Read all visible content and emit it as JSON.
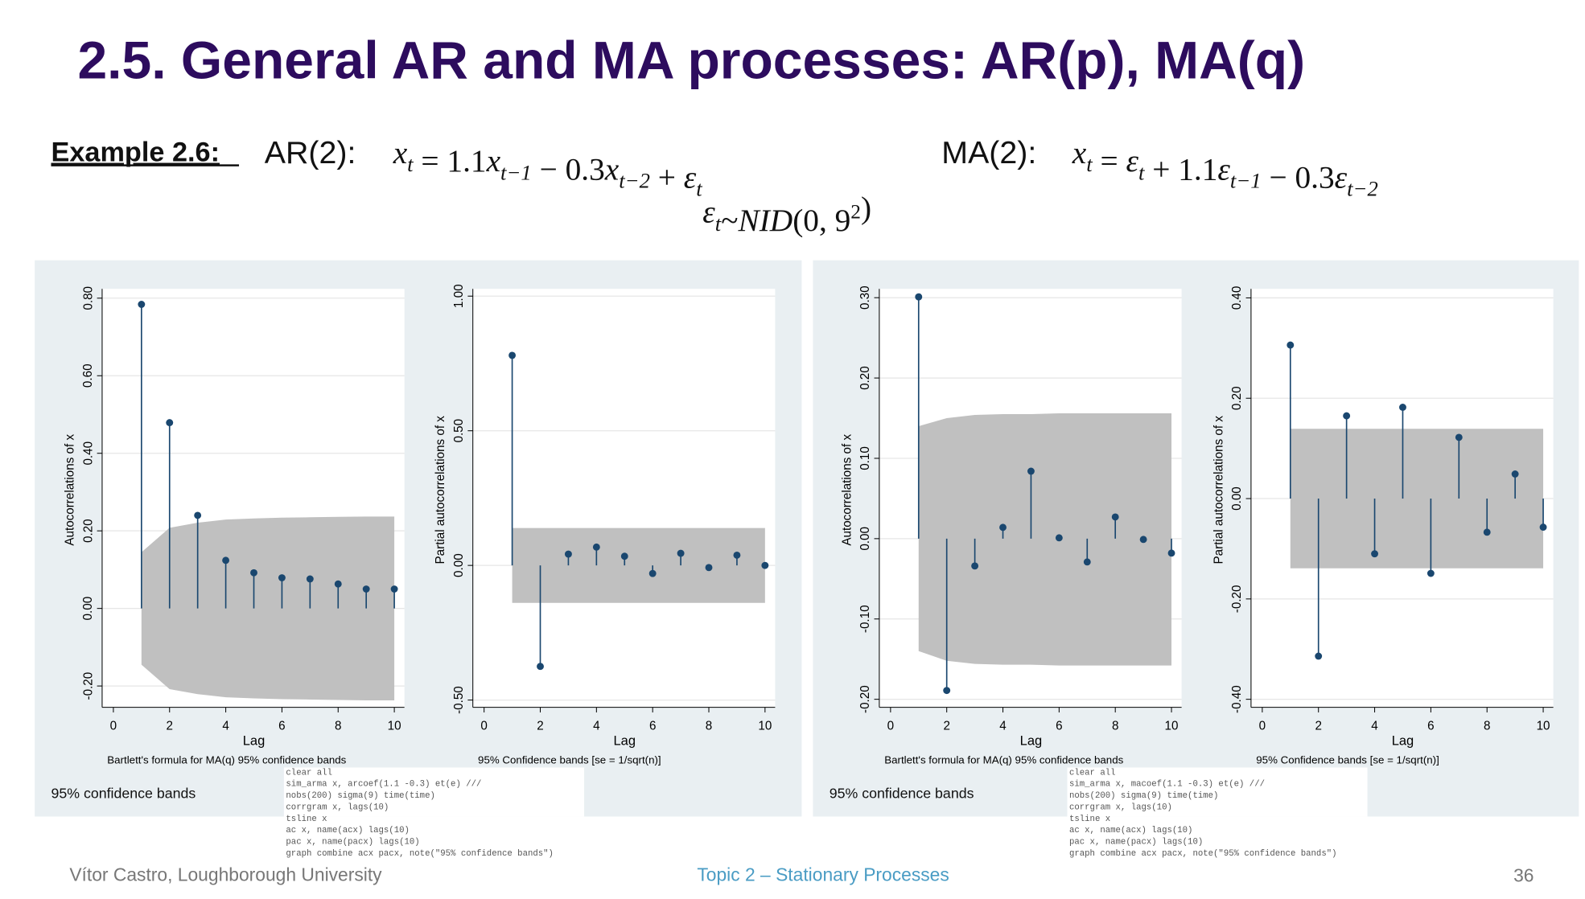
{
  "slide": {
    "title": "2.5. General AR and MA processes: AR(p), MA(q)",
    "example_label": "Example 2.6:",
    "models": [
      {
        "label": "AR(2):",
        "formula": [
          {
            "text": "x",
            "sub": "t"
          },
          {
            "text": " = 1.1"
          },
          {
            "text": "x",
            "sub": "t−1"
          },
          {
            "text": " − 0.3"
          },
          {
            "text": "x",
            "sub": "t−2"
          },
          {
            "text": " + "
          },
          {
            "text": "ε",
            "sub": "t"
          }
        ]
      },
      {
        "label": "MA(2):",
        "formula": [
          {
            "text": "x",
            "sub": "t"
          },
          {
            "text": " = "
          },
          {
            "text": "ε",
            "sub": "t"
          },
          {
            "text": " + 1.1"
          },
          {
            "text": "ε",
            "sub": "t−1"
          },
          {
            "text": " − 0.3"
          },
          {
            "text": "ε",
            "sub": "t−2"
          }
        ]
      }
    ],
    "noise": [
      {
        "text": "ε",
        "sub": "t"
      },
      {
        "text": "~"
      },
      {
        "text": "NID"
      },
      {
        "text": "(0, 9",
        "sup": "2"
      },
      {
        "text": ")"
      }
    ],
    "footer": {
      "author": "Vítor Castro, Loughborough University",
      "topic": "Topic 2 – Stationary Processes",
      "page": 36
    }
  },
  "panels": [
    {
      "note": "95% confidence bands",
      "code": [
        "clear all",
        "sim_arma x, arcoef(1.1 -0.3) et(e) ///",
        "nobs(200) sigma(9) time(time)",
        "corrgram x, lags(10)",
        "tsline x",
        "ac x, name(acx) lags(10)",
        "pac x, name(pacx) lags(10)",
        "graph combine acx pacx, note(\"95% confidence bands\")"
      ]
    },
    {
      "note": "95% confidence bands",
      "code": [
        "clear all",
        "sim_arma x, macoef(1.1 -0.3) et(e) ///",
        "nobs(200) sigma(9) time(time)",
        "corrgram x, lags(10)",
        "tsline x",
        "ac x, name(acx) lags(10)",
        "pac x, name(pacx) lags(10)",
        "graph combine acx pacx, note(\"95% confidence bands\")"
      ]
    }
  ],
  "chart_data": [
    {
      "type": "spike",
      "ylabel": "Autocorrelations of x",
      "xlabel": "Lag",
      "note": "Bartlett's formula for MA(q) 95% confidence bands",
      "x": [
        1,
        2,
        3,
        4,
        5,
        6,
        7,
        8,
        9,
        10
      ],
      "values": [
        0.784,
        0.479,
        0.24,
        0.124,
        0.092,
        0.079,
        0.076,
        0.063,
        0.05,
        0.05
      ],
      "band_upper": [
        0.145,
        0.208,
        0.221,
        0.229,
        0.232,
        0.234,
        0.235,
        0.236,
        0.237,
        0.237
      ],
      "band_lower": [
        -0.145,
        -0.208,
        -0.221,
        -0.229,
        -0.232,
        -0.234,
        -0.235,
        -0.236,
        -0.237,
        -0.237
      ],
      "color": "#1a476f",
      "band_color": "#c0c0c0",
      "grid": true,
      "xlim": [
        -0.4,
        10.36
      ],
      "xticks": [
        0,
        2,
        4,
        6,
        8,
        10
      ],
      "ylim": [
        -0.255,
        0.824
      ],
      "yticks": [
        {
          "value": -0.2,
          "label": "-0.20"
        },
        {
          "value": 0,
          "label": "0.00"
        },
        {
          "value": 0.2,
          "label": "0.20"
        },
        {
          "value": 0.4,
          "label": "0.40"
        },
        {
          "value": 0.6,
          "label": "0.60"
        },
        {
          "value": 0.8,
          "label": "0.80"
        }
      ]
    },
    {
      "type": "spike",
      "ylabel": "Partial autocorrelations of x",
      "xlabel": "Lag",
      "note": "95% Confidence bands [se = 1/sqrt(n)]",
      "x": [
        1,
        2,
        3,
        4,
        5,
        6,
        7,
        8,
        9,
        10
      ],
      "values": [
        0.78,
        -0.375,
        0.042,
        0.068,
        0.034,
        -0.03,
        0.045,
        -0.008,
        0.038,
        0.0
      ],
      "band_upper": [
        0.139,
        0.139,
        0.139,
        0.139,
        0.139,
        0.139,
        0.139,
        0.139,
        0.139,
        0.139
      ],
      "band_lower": [
        -0.139,
        -0.139,
        -0.139,
        -0.139,
        -0.139,
        -0.139,
        -0.139,
        -0.139,
        -0.139,
        -0.139
      ],
      "color": "#1a476f",
      "band_color": "#c0c0c0",
      "grid": true,
      "xlim": [
        -0.4,
        10.36
      ],
      "xticks": [
        0,
        2,
        4,
        6,
        8,
        10
      ],
      "ylim": [
        -0.527,
        1.027
      ],
      "yticks": [
        {
          "value": -0.5,
          "label": "-0.50"
        },
        {
          "value": 0,
          "label": "0.00"
        },
        {
          "value": 0.5,
          "label": "0.50"
        },
        {
          "value": 1,
          "label": "1.00"
        }
      ]
    },
    {
      "type": "spike",
      "ylabel": "Autocorrelations of x",
      "xlabel": "Lag",
      "note": "Bartlett's formula for MA(q) 95% confidence bands",
      "x": [
        1,
        2,
        3,
        4,
        5,
        6,
        7,
        8,
        9,
        10
      ],
      "values": [
        0.301,
        -0.189,
        -0.034,
        0.014,
        0.084,
        0.001,
        -0.029,
        0.027,
        -0.001,
        -0.018
      ],
      "band_upper": [
        0.14,
        0.15,
        0.154,
        0.155,
        0.155,
        0.156,
        0.156,
        0.156,
        0.156,
        0.156
      ],
      "band_lower": [
        -0.14,
        -0.152,
        -0.156,
        -0.157,
        -0.157,
        -0.158,
        -0.158,
        -0.158,
        -0.158,
        -0.158
      ],
      "color": "#1a476f",
      "band_color": "#c0c0c0",
      "grid": true,
      "xlim": [
        -0.4,
        10.36
      ],
      "xticks": [
        0,
        2,
        4,
        6,
        8,
        10
      ],
      "ylim": [
        -0.21,
        0.311
      ],
      "yticks": [
        {
          "value": -0.2,
          "label": "-0.20"
        },
        {
          "value": -0.1,
          "label": "-0.10"
        },
        {
          "value": 0,
          "label": "0.00"
        },
        {
          "value": 0.1,
          "label": "0.10"
        },
        {
          "value": 0.2,
          "label": "0.20"
        },
        {
          "value": 0.3,
          "label": "0.30"
        }
      ]
    },
    {
      "type": "spike",
      "ylabel": "Partial autocorrelations of x",
      "xlabel": "Lag",
      "note": "95% Confidence bands [se = 1/sqrt(n)]",
      "x": [
        1,
        2,
        3,
        4,
        5,
        6,
        7,
        8,
        9,
        10
      ],
      "values": [
        0.306,
        -0.314,
        0.165,
        -0.11,
        0.182,
        -0.149,
        0.122,
        -0.067,
        0.049,
        -0.057
      ],
      "band_upper": [
        0.139,
        0.139,
        0.139,
        0.139,
        0.139,
        0.139,
        0.139,
        0.139,
        0.139,
        0.139
      ],
      "band_lower": [
        -0.139,
        -0.139,
        -0.139,
        -0.139,
        -0.139,
        -0.139,
        -0.139,
        -0.139,
        -0.139,
        -0.139
      ],
      "color": "#1a476f",
      "band_color": "#c0c0c0",
      "grid": true,
      "xlim": [
        -0.4,
        10.36
      ],
      "xticks": [
        0,
        2,
        4,
        6,
        8,
        10
      ],
      "ylim": [
        -0.416,
        0.418
      ],
      "yticks": [
        {
          "value": -0.4,
          "label": "-0.40"
        },
        {
          "value": -0.2,
          "label": "-0.20"
        },
        {
          "value": 0,
          "label": "0.00"
        },
        {
          "value": 0.2,
          "label": "0.20"
        },
        {
          "value": 0.4,
          "label": "0.40"
        }
      ]
    }
  ]
}
